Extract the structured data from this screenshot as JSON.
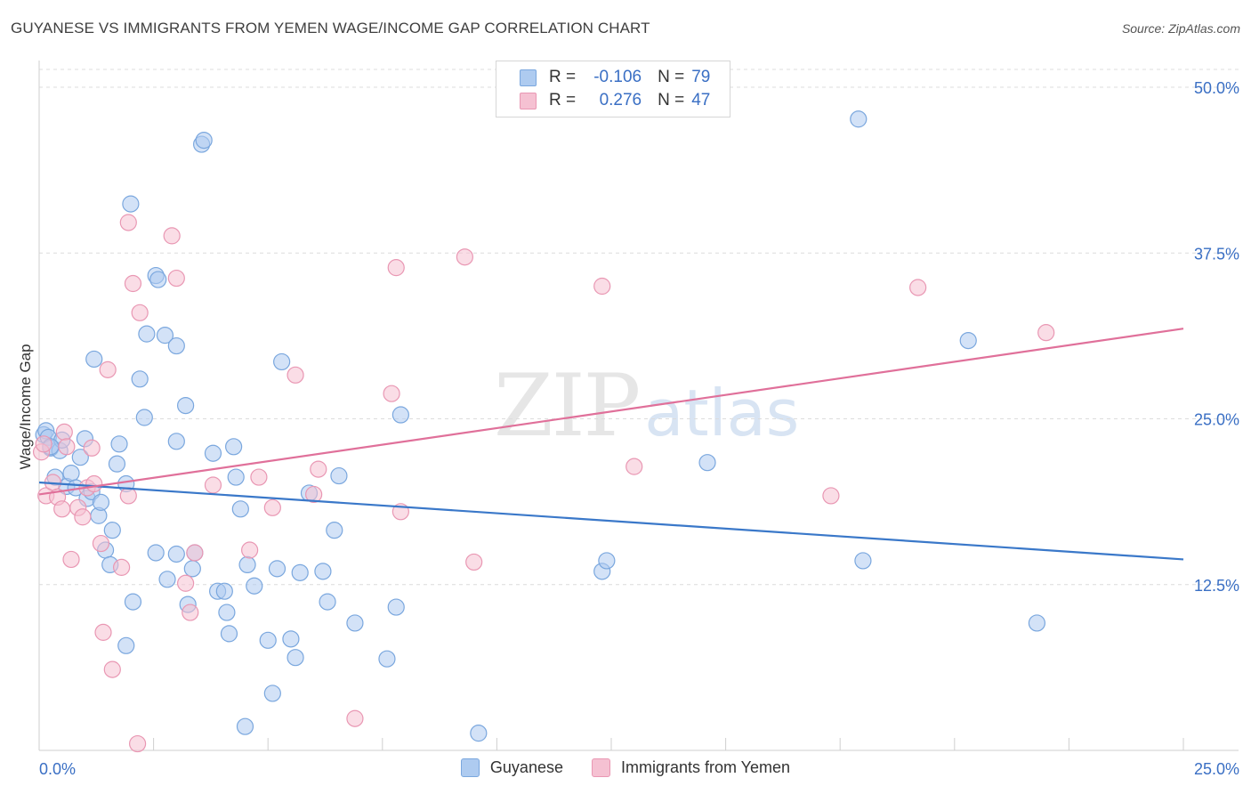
{
  "title": "GUYANESE VS IMMIGRANTS FROM YEMEN WAGE/INCOME GAP CORRELATION CHART",
  "source": "Source: ZipAtlas.com",
  "watermark": {
    "zip": "ZIP",
    "atlas": "atlas"
  },
  "colors": {
    "guyanese_fill": "#aecbf0",
    "guyanese_stroke": "#7aa7de",
    "guyanese_line": "#3a78c9",
    "yemen_fill": "#f5c1d2",
    "yemen_stroke": "#e997b3",
    "yemen_line": "#e0709a",
    "grid": "#dcdcdc",
    "tick_label": "#3a6fc4"
  },
  "legend": {
    "rows": [
      {
        "r_label": "R =",
        "r_value": "-0.106",
        "n_label": "N =",
        "n_value": "79"
      },
      {
        "r_label": "R =",
        "r_value": "0.276",
        "n_label": "N =",
        "n_value": "47"
      }
    ]
  },
  "chart_data": {
    "type": "scatter",
    "title": "GUYANESE VS IMMIGRANTS FROM YEMEN WAGE/INCOME GAP CORRELATION CHART",
    "xlabel": "",
    "ylabel": "Wage/Income Gap",
    "xlim": [
      0,
      25
    ],
    "ylim": [
      0,
      50
    ],
    "x_ticks": [
      {
        "value": 0,
        "label": "0.0%"
      },
      {
        "value": 25,
        "label": "25.0%"
      }
    ],
    "y_ticks": [
      {
        "value": 12.5,
        "label": "12.5%"
      },
      {
        "value": 25,
        "label": "25.0%"
      },
      {
        "value": 37.5,
        "label": "37.5%"
      },
      {
        "value": 50,
        "label": "50.0%"
      }
    ],
    "grid": true,
    "legend_position": "bottom",
    "series": [
      {
        "name": "Guyanese",
        "trend": {
          "x": [
            0,
            25
          ],
          "y": [
            20.2,
            14.4
          ]
        },
        "points": [
          [
            0.1,
            23.8
          ],
          [
            0.15,
            24.1
          ],
          [
            0.2,
            23.6
          ],
          [
            0.25,
            22.8
          ],
          [
            0.35,
            20.6
          ],
          [
            0.45,
            22.6
          ],
          [
            0.5,
            23.4
          ],
          [
            0.6,
            19.9
          ],
          [
            0.7,
            20.9
          ],
          [
            0.8,
            19.8
          ],
          [
            0.9,
            22.1
          ],
          [
            1.0,
            23.5
          ],
          [
            1.05,
            19.0
          ],
          [
            1.15,
            19.5
          ],
          [
            1.2,
            29.5
          ],
          [
            1.3,
            17.7
          ],
          [
            1.35,
            18.7
          ],
          [
            1.45,
            15.1
          ],
          [
            1.55,
            14.0
          ],
          [
            1.6,
            16.6
          ],
          [
            1.7,
            21.6
          ],
          [
            1.75,
            23.1
          ],
          [
            1.9,
            20.1
          ],
          [
            1.9,
            7.9
          ],
          [
            2.0,
            41.2
          ],
          [
            2.05,
            11.2
          ],
          [
            2.2,
            28.0
          ],
          [
            2.3,
            25.1
          ],
          [
            2.35,
            31.4
          ],
          [
            2.55,
            35.8
          ],
          [
            2.6,
            35.5
          ],
          [
            2.55,
            14.9
          ],
          [
            2.75,
            31.3
          ],
          [
            2.8,
            12.9
          ],
          [
            3.0,
            30.5
          ],
          [
            3.0,
            14.8
          ],
          [
            3.0,
            23.3
          ],
          [
            3.2,
            26.0
          ],
          [
            3.25,
            11.0
          ],
          [
            3.35,
            13.7
          ],
          [
            3.4,
            14.9
          ],
          [
            3.55,
            45.7
          ],
          [
            3.6,
            46.0
          ],
          [
            3.8,
            22.4
          ],
          [
            3.9,
            12.0
          ],
          [
            4.05,
            12.0
          ],
          [
            4.1,
            10.4
          ],
          [
            4.15,
            8.8
          ],
          [
            4.25,
            22.9
          ],
          [
            4.3,
            20.6
          ],
          [
            4.4,
            18.2
          ],
          [
            4.5,
            1.8
          ],
          [
            4.55,
            14.0
          ],
          [
            4.7,
            12.4
          ],
          [
            5.0,
            8.3
          ],
          [
            5.1,
            4.3
          ],
          [
            5.2,
            13.7
          ],
          [
            5.3,
            29.3
          ],
          [
            5.5,
            8.4
          ],
          [
            5.6,
            7.0
          ],
          [
            5.7,
            13.4
          ],
          [
            5.9,
            19.4
          ],
          [
            6.2,
            13.5
          ],
          [
            6.3,
            11.2
          ],
          [
            6.45,
            16.6
          ],
          [
            6.55,
            20.7
          ],
          [
            6.9,
            9.6
          ],
          [
            7.6,
            6.9
          ],
          [
            7.8,
            10.8
          ],
          [
            7.9,
            25.3
          ],
          [
            9.6,
            1.3
          ],
          [
            12.3,
            13.5
          ],
          [
            12.4,
            14.3
          ],
          [
            14.6,
            21.7
          ],
          [
            17.9,
            47.6
          ],
          [
            18.0,
            14.3
          ],
          [
            20.3,
            30.9
          ],
          [
            21.8,
            9.6
          ],
          [
            0.25,
            22.9
          ]
        ]
      },
      {
        "name": "Immigrants from Yemen",
        "trend": {
          "x": [
            0,
            25
          ],
          "y": [
            19.3,
            31.8
          ]
        },
        "points": [
          [
            0.05,
            22.5
          ],
          [
            0.15,
            19.2
          ],
          [
            0.3,
            20.2
          ],
          [
            0.4,
            19.1
          ],
          [
            0.5,
            18.2
          ],
          [
            0.55,
            24.0
          ],
          [
            0.6,
            22.9
          ],
          [
            0.7,
            14.4
          ],
          [
            0.85,
            18.3
          ],
          [
            0.95,
            17.6
          ],
          [
            1.05,
            19.8
          ],
          [
            1.15,
            22.8
          ],
          [
            1.2,
            20.1
          ],
          [
            1.35,
            15.6
          ],
          [
            1.4,
            8.9
          ],
          [
            1.5,
            28.7
          ],
          [
            1.6,
            6.1
          ],
          [
            1.8,
            13.8
          ],
          [
            1.95,
            19.2
          ],
          [
            1.95,
            39.8
          ],
          [
            2.05,
            35.2
          ],
          [
            2.15,
            0.5
          ],
          [
            2.2,
            33.0
          ],
          [
            2.9,
            38.8
          ],
          [
            3.0,
            35.6
          ],
          [
            3.2,
            12.6
          ],
          [
            3.3,
            10.4
          ],
          [
            3.4,
            14.9
          ],
          [
            3.8,
            20.0
          ],
          [
            4.6,
            15.1
          ],
          [
            4.8,
            20.6
          ],
          [
            5.1,
            18.3
          ],
          [
            5.6,
            28.3
          ],
          [
            6.0,
            19.3
          ],
          [
            6.1,
            21.2
          ],
          [
            6.9,
            2.4
          ],
          [
            7.7,
            26.9
          ],
          [
            7.8,
            36.4
          ],
          [
            7.9,
            18.0
          ],
          [
            9.3,
            37.2
          ],
          [
            9.5,
            14.2
          ],
          [
            12.3,
            35.0
          ],
          [
            13.0,
            21.4
          ],
          [
            17.3,
            19.2
          ],
          [
            19.2,
            34.9
          ],
          [
            22.0,
            31.5
          ],
          [
            0.1,
            23.1
          ]
        ]
      }
    ]
  }
}
